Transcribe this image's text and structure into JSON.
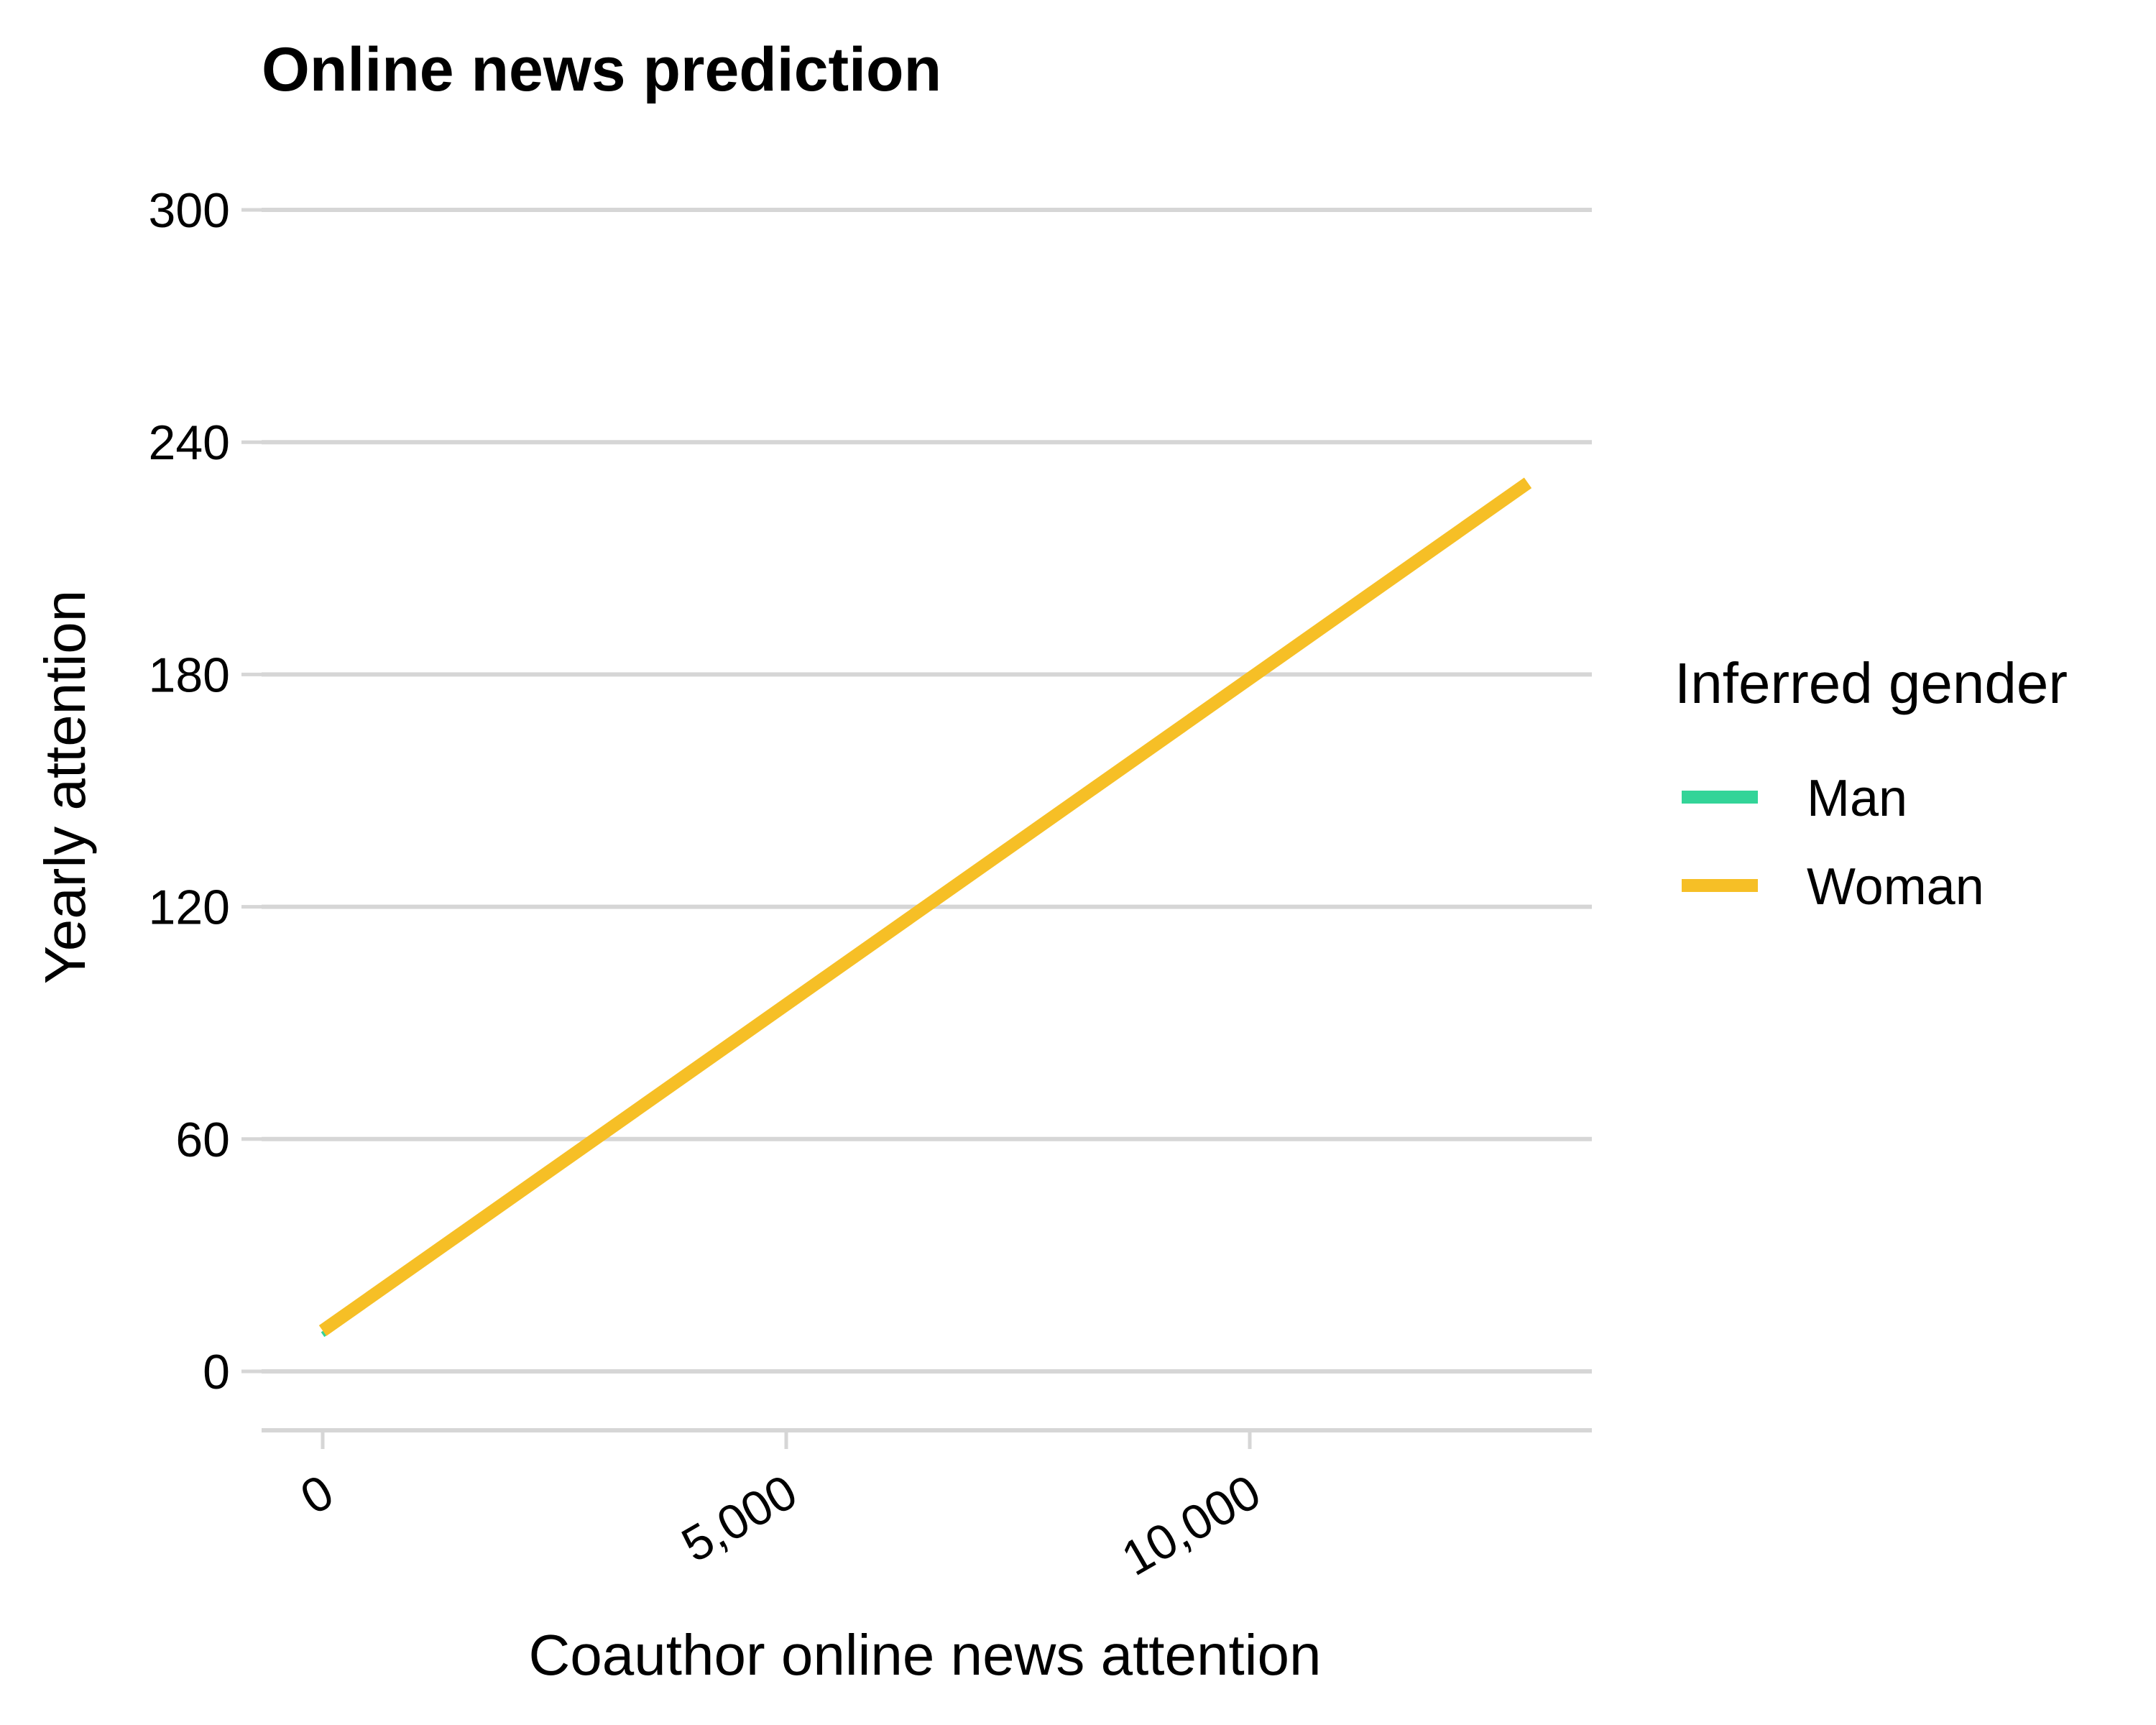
{
  "chart_data": {
    "type": "line",
    "title": "Online news prediction",
    "xlabel": "Coauthor online news attention",
    "ylabel": "Yearly attention",
    "xlim": [
      -700,
      13800
    ],
    "ylim": [
      -15,
      300
    ],
    "x_ticks": [
      {
        "value": 0,
        "label": "0"
      },
      {
        "value": 5000,
        "label": "5,000"
      },
      {
        "value": 10000,
        "label": "10,000"
      }
    ],
    "y_ticks": [
      {
        "value": 0,
        "label": "0"
      },
      {
        "value": 60,
        "label": "60"
      },
      {
        "value": 120,
        "label": "120"
      },
      {
        "value": 180,
        "label": "180"
      },
      {
        "value": 240,
        "label": "240"
      },
      {
        "value": 300,
        "label": "300"
      }
    ],
    "grid": "horizontal major",
    "legend": {
      "title": "Inferred gender",
      "placement": "right"
    },
    "series": [
      {
        "name": "Man",
        "color": "#33D498",
        "x": [
          0,
          13000
        ],
        "y": [
          9.5,
          229
        ]
      },
      {
        "name": "Woman",
        "color": "#F6BF26",
        "x": [
          0,
          13000
        ],
        "y": [
          10.5,
          229.5
        ]
      }
    ]
  }
}
